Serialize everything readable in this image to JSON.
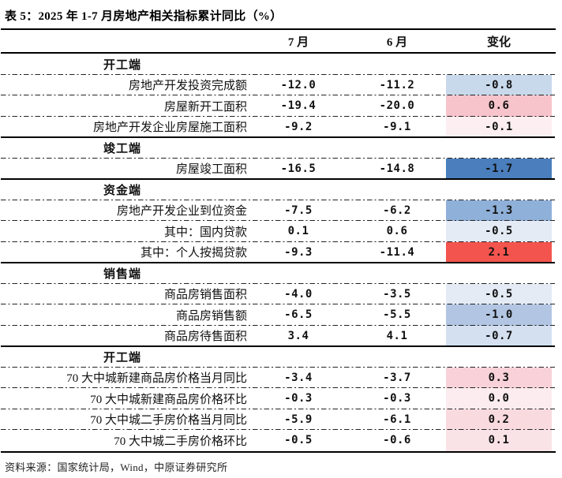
{
  "page": {
    "title": "表 5：2025 年 1-7 月房地产相关指标累计同比（%）",
    "source": "资料来源：国家统计局，Wind，中原证券研究所"
  },
  "table": {
    "columns": [
      "7 月",
      "6 月",
      "变化"
    ],
    "sections": [
      {
        "name": "开工端",
        "rows": [
          {
            "label": "房地产开发投资完成额",
            "jul": "-12.0",
            "jun": "-11.2",
            "change": "-0.8",
            "change_color": "#c9d9ec"
          },
          {
            "label": "房屋新开工面积",
            "jul": "-19.4",
            "jun": "-20.0",
            "change": "0.6",
            "change_color": "#f7c4cb"
          },
          {
            "label": "房地产开发企业房屋施工面积",
            "jul": "-9.2",
            "jun": "-9.1",
            "change": "-0.1",
            "change_color": "#fdeff1"
          }
        ]
      },
      {
        "name": "竣工端",
        "rows": [
          {
            "label": "房屋竣工面积",
            "jul": "-16.5",
            "jun": "-14.8",
            "change": "-1.7",
            "change_color": "#4a7ebd"
          }
        ]
      },
      {
        "name": "资金端",
        "rows": [
          {
            "label": "房地产开发企业到位资金",
            "jul": "-7.5",
            "jun": "-6.2",
            "change": "-1.3",
            "change_color": "#8fb0d8"
          },
          {
            "label": "其中：国内贷款",
            "jul": "0.1",
            "jun": "0.6",
            "change": "-0.5",
            "change_color": "#e4ebf5"
          },
          {
            "label": "其中：个人按揭贷款",
            "jul": "-9.3",
            "jun": "-11.4",
            "change": "2.1",
            "change_color": "#f4544e"
          }
        ]
      },
      {
        "name": "销售端",
        "rows": [
          {
            "label": "商品房销售面积",
            "jul": "-4.0",
            "jun": "-3.5",
            "change": "-0.5",
            "change_color": "#e4ebf5"
          },
          {
            "label": "商品房销售额",
            "jul": "-6.5",
            "jun": "-5.5",
            "change": "-1.0",
            "change_color": "#b2c6e3"
          },
          {
            "label": "商品房待售面积",
            "jul": "3.4",
            "jun": "4.1",
            "change": "-0.7",
            "change_color": "#d4e0f0"
          }
        ]
      },
      {
        "name": "开工端",
        "rows": [
          {
            "label": "70 大中城新建商品房价格当月同比",
            "jul": "-3.4",
            "jun": "-3.7",
            "change": "0.3",
            "change_color": "#f8d2d8"
          },
          {
            "label": "70 大中城新建商品房价格环比",
            "jul": "-0.3",
            "jun": "-0.3",
            "change": "0.0",
            "change_color": "#fcecef"
          },
          {
            "label": "70 大中城二手房价格当月同比",
            "jul": "-5.9",
            "jun": "-6.1",
            "change": "0.2",
            "change_color": "#f9dade"
          },
          {
            "label": "70 大中城二手房价格环比",
            "jul": "-0.5",
            "jun": "-0.6",
            "change": "0.1",
            "change_color": "#fae3e7"
          }
        ]
      }
    ]
  },
  "colors": {
    "increase_strong": "#f4544e",
    "decrease_strong": "#4a7ebd",
    "border_line": "#000000"
  }
}
